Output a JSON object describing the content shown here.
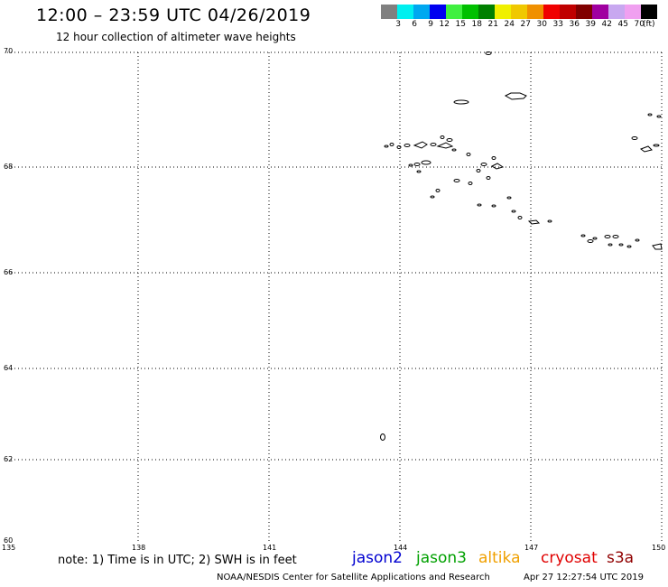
{
  "header": {
    "title": "12:00 – 23:59 UTC 04/26/2019",
    "subtitle": "12 hour collection of altimeter wave heights"
  },
  "colorbar": {
    "swatches": [
      {
        "color": "#808080",
        "label": "3"
      },
      {
        "color": "#00f0f0",
        "label": "6"
      },
      {
        "color": "#00a8f0",
        "label": "9"
      },
      {
        "color": "#0000f0",
        "label": "12"
      },
      {
        "color": "#40f040",
        "label": "15"
      },
      {
        "color": "#00c000",
        "label": "18"
      },
      {
        "color": "#008000",
        "label": "21"
      },
      {
        "color": "#f0f000",
        "label": "24"
      },
      {
        "color": "#f0c800",
        "label": "27"
      },
      {
        "color": "#f09000",
        "label": "30"
      },
      {
        "color": "#f00000",
        "label": "33"
      },
      {
        "color": "#c00000",
        "label": "36"
      },
      {
        "color": "#800000",
        "label": "39"
      },
      {
        "color": "#a000a0",
        "label": "42"
      },
      {
        "color": "#c8a8f0",
        "label": "45"
      },
      {
        "color": "#f0a0f0",
        "label": "70"
      },
      {
        "color": "#000000",
        "label": ""
      }
    ],
    "unit": "(ft)"
  },
  "axes": {
    "y_ticks": [
      "70",
      "68",
      "66",
      "64",
      "62",
      "60"
    ],
    "x_ticks": [
      "135",
      "138",
      "141",
      "144",
      "147",
      "150"
    ]
  },
  "footer": {
    "note": "note: 1) Time is in UTC; 2) SWH is in feet",
    "satellites": [
      {
        "name": "jason2",
        "color": "#0000d0"
      },
      {
        "name": "jason3",
        "color": "#00a000"
      },
      {
        "name": "altika",
        "color": "#f0a000"
      },
      {
        "name": "cryosat",
        "color": "#e00000"
      },
      {
        "name": "s3a",
        "color": "#900000"
      }
    ],
    "credit": "NOAA/NESDIS Center for Satellite Applications and Research",
    "generated": "Apr 27 12:27:54 UTC 2019"
  }
}
